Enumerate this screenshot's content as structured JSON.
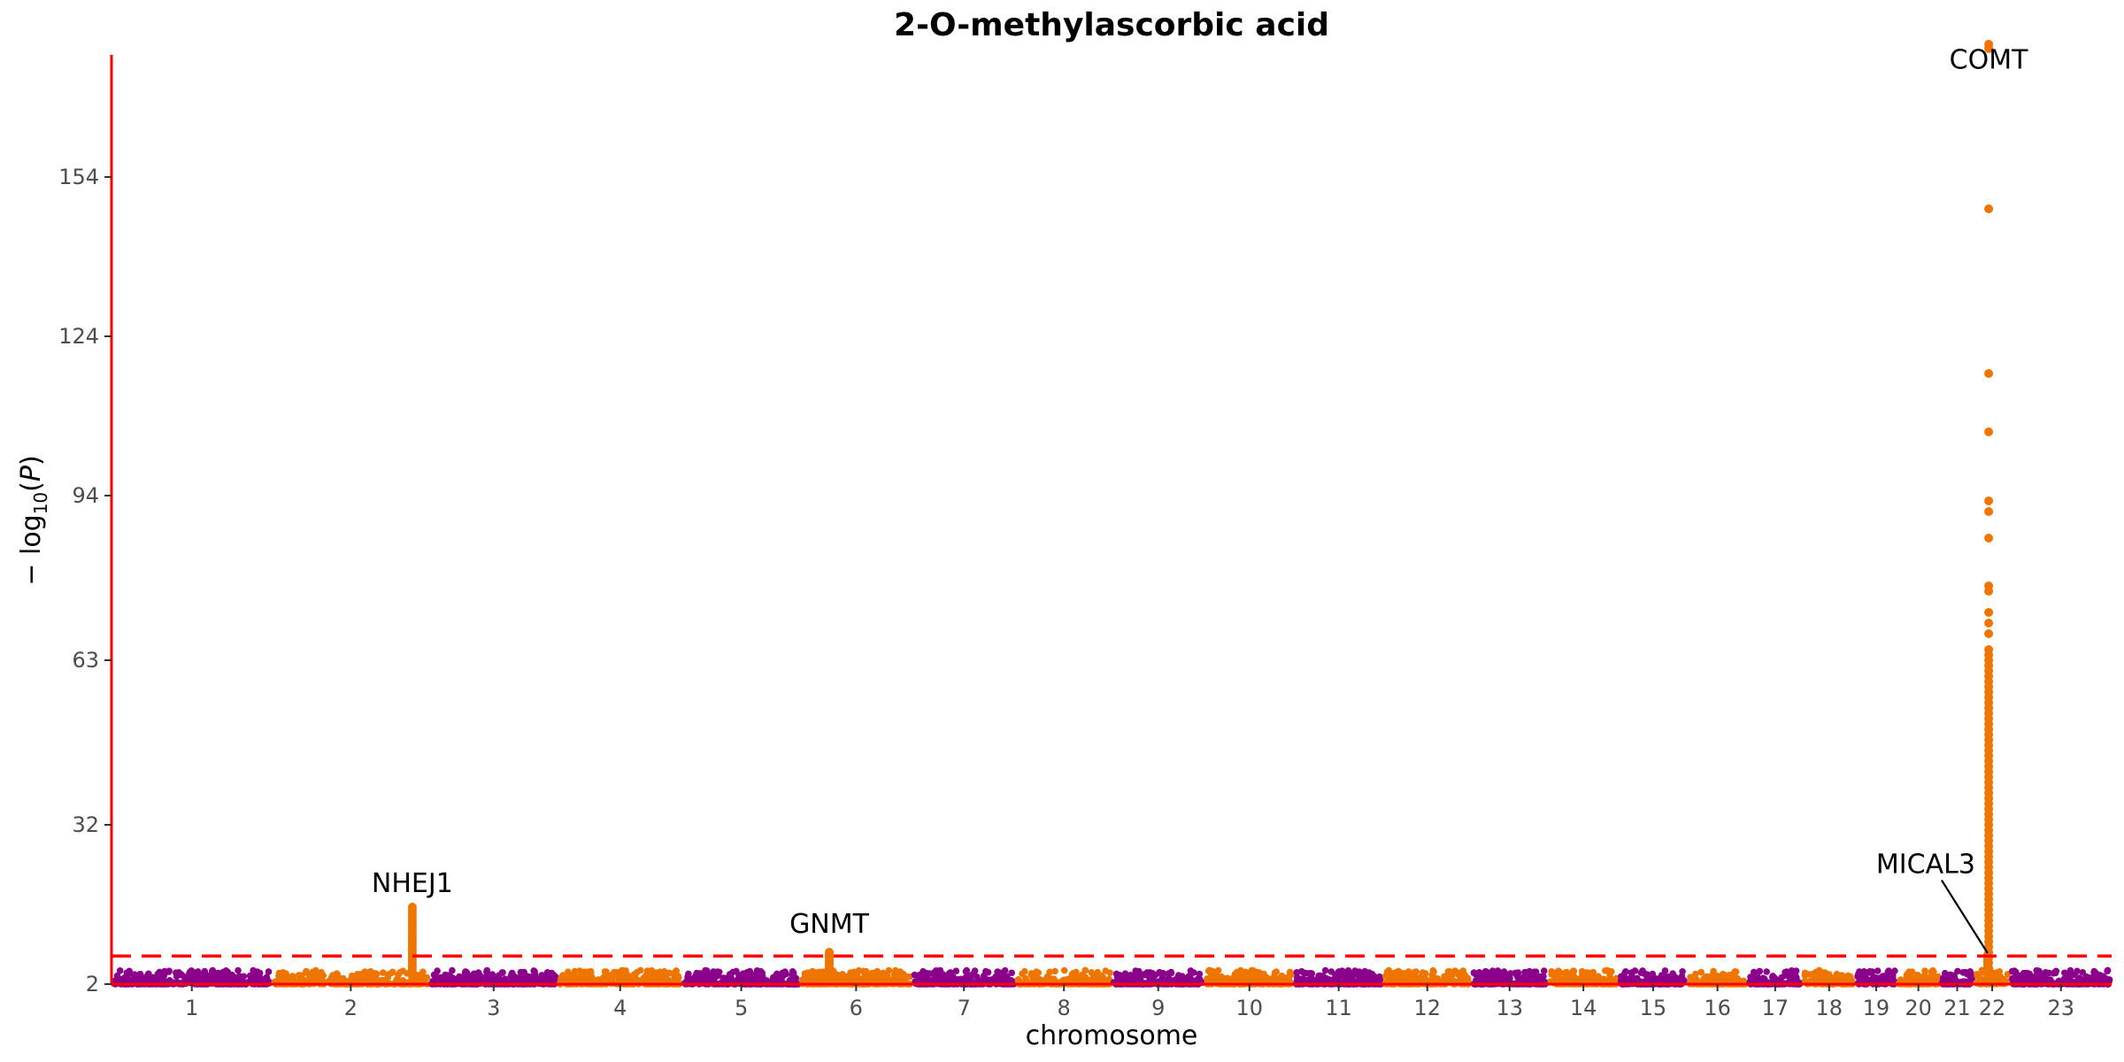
{
  "chart_data": {
    "type": "scatter",
    "subtype": "manhattan",
    "title": "2-O-methylascorbic acid",
    "xlabel": "chromosome",
    "ylabel": "−log10(P)",
    "ylabel_parts": {
      "prefix": "− log",
      "sub": "10",
      "open": "(",
      "var": "P",
      "close": ")"
    },
    "ylim": [
      2,
      177
    ],
    "yticks": [
      2,
      32,
      63,
      94,
      124,
      154
    ],
    "grid": false,
    "legend": "none",
    "colors": {
      "odd": "#8B008B",
      "even": "#EE7600",
      "axis": "#FF0000",
      "threshold": "#FF0000",
      "annotation_line": "#000000"
    },
    "significance_threshold": 7.3,
    "chromosomes": [
      {
        "label": "1",
        "len": 249
      },
      {
        "label": "2",
        "len": 243
      },
      {
        "label": "3",
        "len": 198
      },
      {
        "label": "4",
        "len": 191
      },
      {
        "label": "5",
        "len": 181
      },
      {
        "label": "6",
        "len": 171
      },
      {
        "label": "7",
        "len": 159
      },
      {
        "label": "8",
        "len": 146
      },
      {
        "label": "9",
        "len": 141
      },
      {
        "label": "10",
        "len": 136
      },
      {
        "label": "11",
        "len": 135
      },
      {
        "label": "12",
        "len": 134
      },
      {
        "label": "13",
        "len": 115
      },
      {
        "label": "14",
        "len": 107
      },
      {
        "label": "15",
        "len": 102
      },
      {
        "label": "16",
        "len": 90
      },
      {
        "label": "17",
        "len": 81
      },
      {
        "label": "18",
        "len": 78
      },
      {
        "label": "19",
        "len": 59
      },
      {
        "label": "20",
        "len": 63
      },
      {
        "label": "21",
        "len": 48
      },
      {
        "label": "22",
        "len": 51
      },
      {
        "label": "23",
        "len": 155
      }
    ],
    "peaks": [
      {
        "gene": "NHEJ1",
        "chrom": "2",
        "pos": 219,
        "top": 16.5,
        "values": [
          16.5,
          15.8,
          15.2,
          14.6,
          14.0,
          13.4,
          12.9,
          12.3,
          11.7,
          11.1,
          10.6,
          10.0,
          9.5,
          8.9,
          8.4,
          7.8,
          7.3,
          6.8,
          6.3,
          5.8,
          5.3,
          4.8,
          4.3
        ]
      },
      {
        "gene": "GNMT",
        "chrom": "6",
        "pos": 43,
        "top": 8.0,
        "values": [
          8.0,
          7.6,
          7.2,
          6.9,
          6.5,
          6.1,
          5.8,
          5.4,
          5.0,
          4.6
        ]
      },
      {
        "gene": "COMT",
        "chrom": "22",
        "pos": 19.9,
        "top": 179,
        "values": [
          179,
          178.2,
          148,
          117,
          106,
          93,
          91,
          86,
          77,
          76,
          72,
          70,
          68,
          65,
          64,
          63,
          62,
          61,
          60,
          59,
          58,
          57,
          56,
          55,
          54,
          53,
          52,
          51,
          50,
          49,
          48,
          47,
          46,
          45,
          44,
          43,
          42,
          41,
          40,
          39,
          38,
          37,
          36,
          35,
          34,
          33,
          32,
          31,
          30,
          29,
          28,
          27,
          26,
          25,
          24,
          23,
          22,
          21,
          20,
          19,
          18,
          17,
          16,
          15,
          14,
          13,
          12,
          11,
          10,
          9,
          8,
          7,
          6,
          5,
          4
        ]
      },
      {
        "gene": "MICAL3",
        "chrom": "22",
        "pos": 18.3,
        "top": 7.5,
        "values": [
          7.5,
          6.8,
          6.2,
          5.6,
          5.0,
          4.4
        ]
      }
    ],
    "labels": [
      {
        "text": "COMT",
        "gene": "COMT",
        "y": 174.4
      },
      {
        "text": "NHEJ1",
        "gene": "NHEJ1",
        "y": 19.3
      },
      {
        "text": "GNMT",
        "gene": "GNMT",
        "y": 11.7
      },
      {
        "text": "MICAL3",
        "gene": "MICAL3",
        "y": 22.9,
        "has_leader": true
      }
    ]
  }
}
